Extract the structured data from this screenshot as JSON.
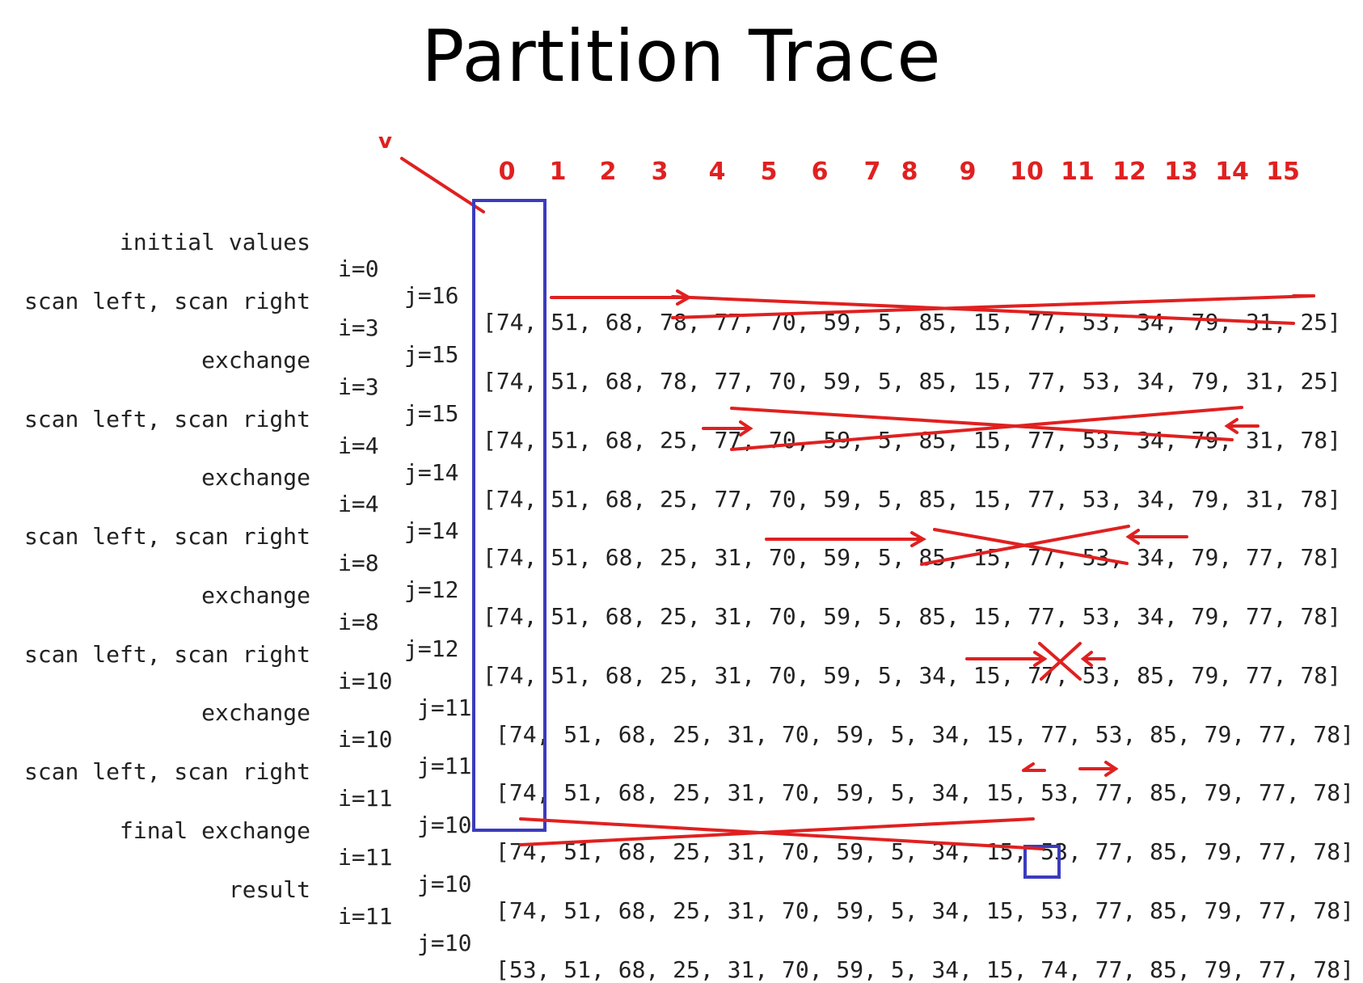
{
  "title": "Partition Trace",
  "pointer_label": "v",
  "indices": [
    "0",
    "1",
    "2",
    "3",
    "4",
    "5",
    "6",
    "7",
    "8",
    "9",
    "10",
    "11",
    "12",
    "13",
    "14",
    "15"
  ],
  "rows": [
    {
      "label": "initial values",
      "i": "i=0",
      "j": "j=16",
      "values": "[74, 51, 68, 78, 77, 70, 59, 5, 85, 15, 77, 53, 34, 79, 31, 25]"
    },
    {
      "label": "scan left, scan right",
      "i": "i=3",
      "j": "j=15",
      "values": "[74, 51, 68, 78, 77, 70, 59, 5, 85, 15, 77, 53, 34, 79, 31, 25]"
    },
    {
      "label": "exchange",
      "i": "i=3",
      "j": "j=15",
      "values": "[74, 51, 68, 25, 77, 70, 59, 5, 85, 15, 77, 53, 34, 79, 31, 78]"
    },
    {
      "label": "scan left, scan right",
      "i": "i=4",
      "j": "j=14",
      "values": "[74, 51, 68, 25, 77, 70, 59, 5, 85, 15, 77, 53, 34, 79, 31, 78]"
    },
    {
      "label": "exchange",
      "i": "i=4",
      "j": "j=14",
      "values": "[74, 51, 68, 25, 31, 70, 59, 5, 85, 15, 77, 53, 34, 79, 77, 78]"
    },
    {
      "label": "scan left, scan right",
      "i": "i=8",
      "j": "j=12",
      "values": "[74, 51, 68, 25, 31, 70, 59, 5, 85, 15, 77, 53, 34, 79, 77, 78]"
    },
    {
      "label": "exchange",
      "i": "i=8",
      "j": "j=12",
      "values": "[74, 51, 68, 25, 31, 70, 59, 5, 34, 15, 77, 53, 85, 79, 77, 78]"
    },
    {
      "label": "scan left, scan right",
      "i": "i=10",
      "j": "j=11",
      "values": "[74, 51, 68, 25, 31, 70, 59, 5, 34, 15, 77, 53, 85, 79, 77, 78]"
    },
    {
      "label": "exchange",
      "i": "i=10",
      "j": "j=11",
      "values": "[74, 51, 68, 25, 31, 70, 59, 5, 34, 15, 53, 77, 85, 79, 77, 78]"
    },
    {
      "label": "scan left, scan right",
      "i": "i=11",
      "j": "j=10",
      "values": "[74, 51, 68, 25, 31, 70, 59, 5, 34, 15, 53, 77, 85, 79, 77, 78]"
    },
    {
      "label": "final exchange",
      "i": "i=11",
      "j": "j=10",
      "values": "[74, 51, 68, 25, 31, 70, 59, 5, 34, 15, 53, 77, 85, 79, 77, 78]"
    },
    {
      "label": "result",
      "i": "i=11",
      "j": "j=10",
      "values": "[53, 51, 68, 25, 31, 70, 59, 5, 34, 15, 74, 77, 85, 79, 77, 78]"
    }
  ],
  "colors": {
    "annotation": "#e02020",
    "highlight_box": "#3b3bbf",
    "text": "#222222"
  }
}
